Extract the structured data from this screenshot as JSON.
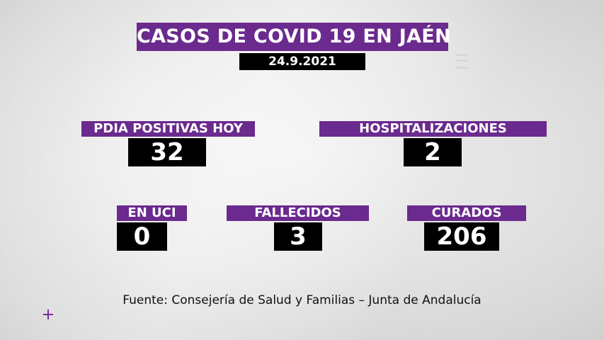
{
  "header": {
    "title": "CASOS DE COVID 19 EN JAÉN",
    "date": "24.9.2021"
  },
  "stats": {
    "pdia": {
      "label": "PDIA POSITIVAS HOY",
      "value": "32"
    },
    "hospitalizaciones": {
      "label": "HOSPITALIZACIONES",
      "value": "2"
    },
    "uci": {
      "label": "EN UCI",
      "value": "0"
    },
    "fallecidos": {
      "label": "FALLECIDOS",
      "value": "3"
    },
    "curados": {
      "label": "CURADOS",
      "value": "206"
    }
  },
  "footer": {
    "source": "Fuente: Consejería de Salud y Familias – Junta de Andalucía"
  },
  "colors": {
    "accent": "#6a2a8e",
    "value_bg": "#000000",
    "text_light": "#ffffff",
    "background": "#ececec"
  },
  "icons": [
    "plus-icon"
  ]
}
